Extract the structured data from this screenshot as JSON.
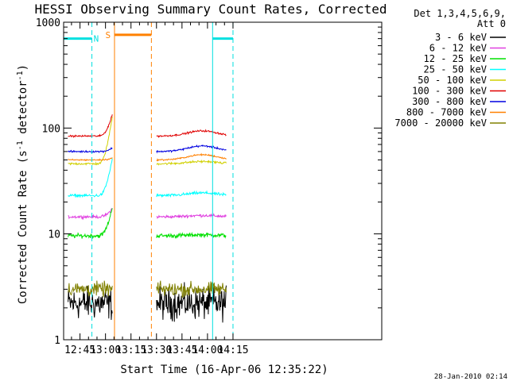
{
  "chart_data": {
    "type": "line",
    "title": "HESSI Observing Summary Count Rates, Corrected",
    "xlabel": "Start Time (16-Apr-06 12:35:22)",
    "ylabel": "Corrected Count Rate (s",
    "ylabel_sup1": "-1",
    "ylabel_mid": " detector",
    "ylabel_sup2": "-1",
    "ylabel_end": ")",
    "y_scale": "log",
    "xlim_min": [
      35.37,
      222.5
    ],
    "ylim": [
      1,
      1000
    ],
    "x_ticks": [
      {
        "label": "12:45",
        "min": 45
      },
      {
        "label": "13:00",
        "min": 60
      },
      {
        "label": "13:15",
        "min": 75
      },
      {
        "label": "13:30",
        "min": 90
      },
      {
        "label": "13:45",
        "min": 105
      },
      {
        "label": "14:00",
        "min": 120
      },
      {
        "label": "14:15",
        "min": 135
      }
    ],
    "y_ticks": [
      {
        "label": "1",
        "value": 1
      },
      {
        "label": "10",
        "value": 10
      },
      {
        "label": "100",
        "value": 100
      },
      {
        "label": "1000",
        "value": 1000
      }
    ],
    "legend_title": [
      "Det 1,3,4,5,6,9,",
      "Att 0"
    ],
    "legend_position": "right",
    "series": [
      {
        "name": "3 - 6 keV",
        "color": "#000000",
        "level": 2.2,
        "noise": 0.45,
        "segs": [
          [
            38,
            64,
            0,
            0
          ],
          [
            90,
            131,
            0,
            0
          ]
        ]
      },
      {
        "name": "6 - 12 keV",
        "color": "#e040e0",
        "level": 14.5,
        "noise": 0.04,
        "segs": [
          [
            38,
            64,
            0,
            3
          ],
          [
            90,
            131,
            0.03,
            0
          ]
        ]
      },
      {
        "name": "12 - 25 keV",
        "color": "#00e000",
        "level": 9.6,
        "noise": 0.06,
        "segs": [
          [
            38,
            64,
            0,
            8
          ],
          [
            90,
            131,
            0.02,
            0
          ]
        ]
      },
      {
        "name": "25 - 50 keV",
        "color": "#00ffff",
        "level": 23,
        "noise": 0.04,
        "segs": [
          [
            38,
            64,
            0,
            28
          ],
          [
            90,
            131,
            0.06,
            0
          ]
        ]
      },
      {
        "name": "50 - 100 keV",
        "color": "#d0d000",
        "level": 46,
        "noise": 0.03,
        "segs": [
          [
            38,
            64,
            0,
            80
          ],
          [
            90,
            131,
            0.05,
            0
          ]
        ]
      },
      {
        "name": "100 - 300 keV",
        "color": "#e00000",
        "level": 84,
        "noise": 0.025,
        "segs": [
          [
            38,
            64,
            0,
            50
          ],
          [
            90,
            131,
            0.12,
            0
          ]
        ]
      },
      {
        "name": "300 - 800 keV",
        "color": "#0000e0",
        "level": 60,
        "noise": 0.025,
        "segs": [
          [
            38,
            64,
            0,
            5
          ],
          [
            90,
            131,
            0.13,
            0
          ]
        ]
      },
      {
        "name": "800 - 7000 keV",
        "color": "#ff8000",
        "level": 50,
        "noise": 0.02,
        "segs": [
          [
            38,
            64,
            0,
            2
          ],
          [
            90,
            131,
            0.12,
            0
          ]
        ]
      },
      {
        "name": "7000 - 20000 keV",
        "color": "#808000",
        "level": 3.0,
        "noise": 0.2,
        "segs": [
          [
            38,
            64,
            0,
            0
          ],
          [
            90,
            131,
            0,
            0
          ]
        ]
      }
    ],
    "flags": [
      {
        "label": "N",
        "color": "#00e0e0",
        "value": 700,
        "spans": [
          [
            35.37,
            52
          ]
        ],
        "text_at": 54.5,
        "ends_min": [
          35.37,
          52
        ]
      },
      {
        "label": "S",
        "color": "#ff8000",
        "value": 760,
        "spans": [
          [
            65.3,
            87
          ]
        ],
        "text_at": 61.5,
        "ends_min": [
          65.3,
          87
        ]
      },
      {
        "label": "",
        "color": "#00e0e0",
        "value": 700,
        "spans": [
          [
            123,
            135
          ]
        ],
        "text_at": 0,
        "ends_min": [
          123,
          135
        ]
      }
    ],
    "footer_date": "28-Jan-2010 02:14"
  }
}
